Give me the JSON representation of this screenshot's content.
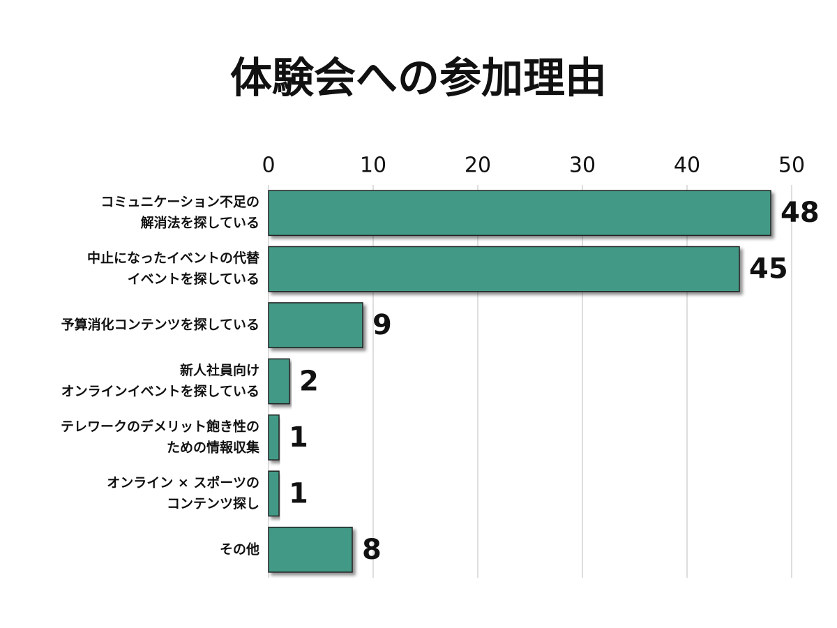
{
  "chart_data": {
    "type": "bar",
    "orientation": "horizontal",
    "title": "体験会への参加理由",
    "categories": [
      [
        "コミュニケーション不足の",
        "解消法を探している"
      ],
      [
        "中止になったイベントの代替",
        "イベントを探している"
      ],
      [
        "予算消化コンテンツを探している"
      ],
      [
        "新人社員向け",
        "オンラインイベントを探している"
      ],
      [
        "テレワークのデメリット飽き性の",
        "ための情報収集"
      ],
      [
        "オンライン × スポーツの",
        "コンテンツ探し"
      ],
      [
        "その他"
      ]
    ],
    "values": [
      48,
      45,
      9,
      2,
      1,
      1,
      8
    ],
    "color": "#429a86",
    "xlim": [
      0,
      50
    ],
    "xticks": [
      0,
      10,
      20,
      30,
      40,
      50
    ],
    "grid": true
  }
}
